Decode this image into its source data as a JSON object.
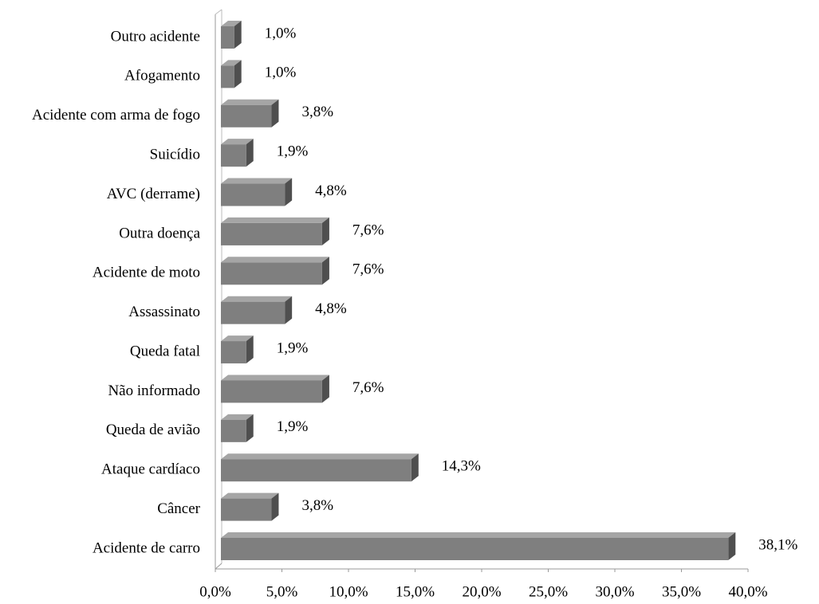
{
  "chart_data": {
    "type": "hbar3d",
    "categories": [
      "Outro acidente",
      "Afogamento",
      "Acidente com arma de fogo",
      "Suicídio",
      "AVC (derrame)",
      "Outra doença",
      "Acidente de moto",
      "Assassinato",
      "Queda fatal",
      "Não informado",
      "Queda de avião",
      "Ataque cardíaco",
      "Câncer",
      "Acidente de carro"
    ],
    "values": [
      1.0,
      1.0,
      3.8,
      1.9,
      4.8,
      7.6,
      7.6,
      4.8,
      1.9,
      7.6,
      1.9,
      14.3,
      3.8,
      38.1
    ],
    "value_labels": [
      "1,0%",
      "1,0%",
      "3,8%",
      "1,9%",
      "4,8%",
      "7,6%",
      "7,6%",
      "4,8%",
      "1,9%",
      "7,6%",
      "1,9%",
      "14,3%",
      "3,8%",
      "38,1%"
    ],
    "color": "#7f7f7f",
    "xlim": [
      0,
      40
    ],
    "xticks": [
      {
        "value": 0,
        "label": "0,0%"
      },
      {
        "value": 5,
        "label": "5,0%"
      },
      {
        "value": 10,
        "label": "10,0%"
      },
      {
        "value": 15,
        "label": "15,0%"
      },
      {
        "value": 20,
        "label": "20,0%"
      },
      {
        "value": 25,
        "label": "25,0%"
      },
      {
        "value": 30,
        "label": "30,0%"
      },
      {
        "value": 35,
        "label": "35,0%"
      },
      {
        "value": 40,
        "label": "40,0%"
      }
    ],
    "grid": false
  }
}
